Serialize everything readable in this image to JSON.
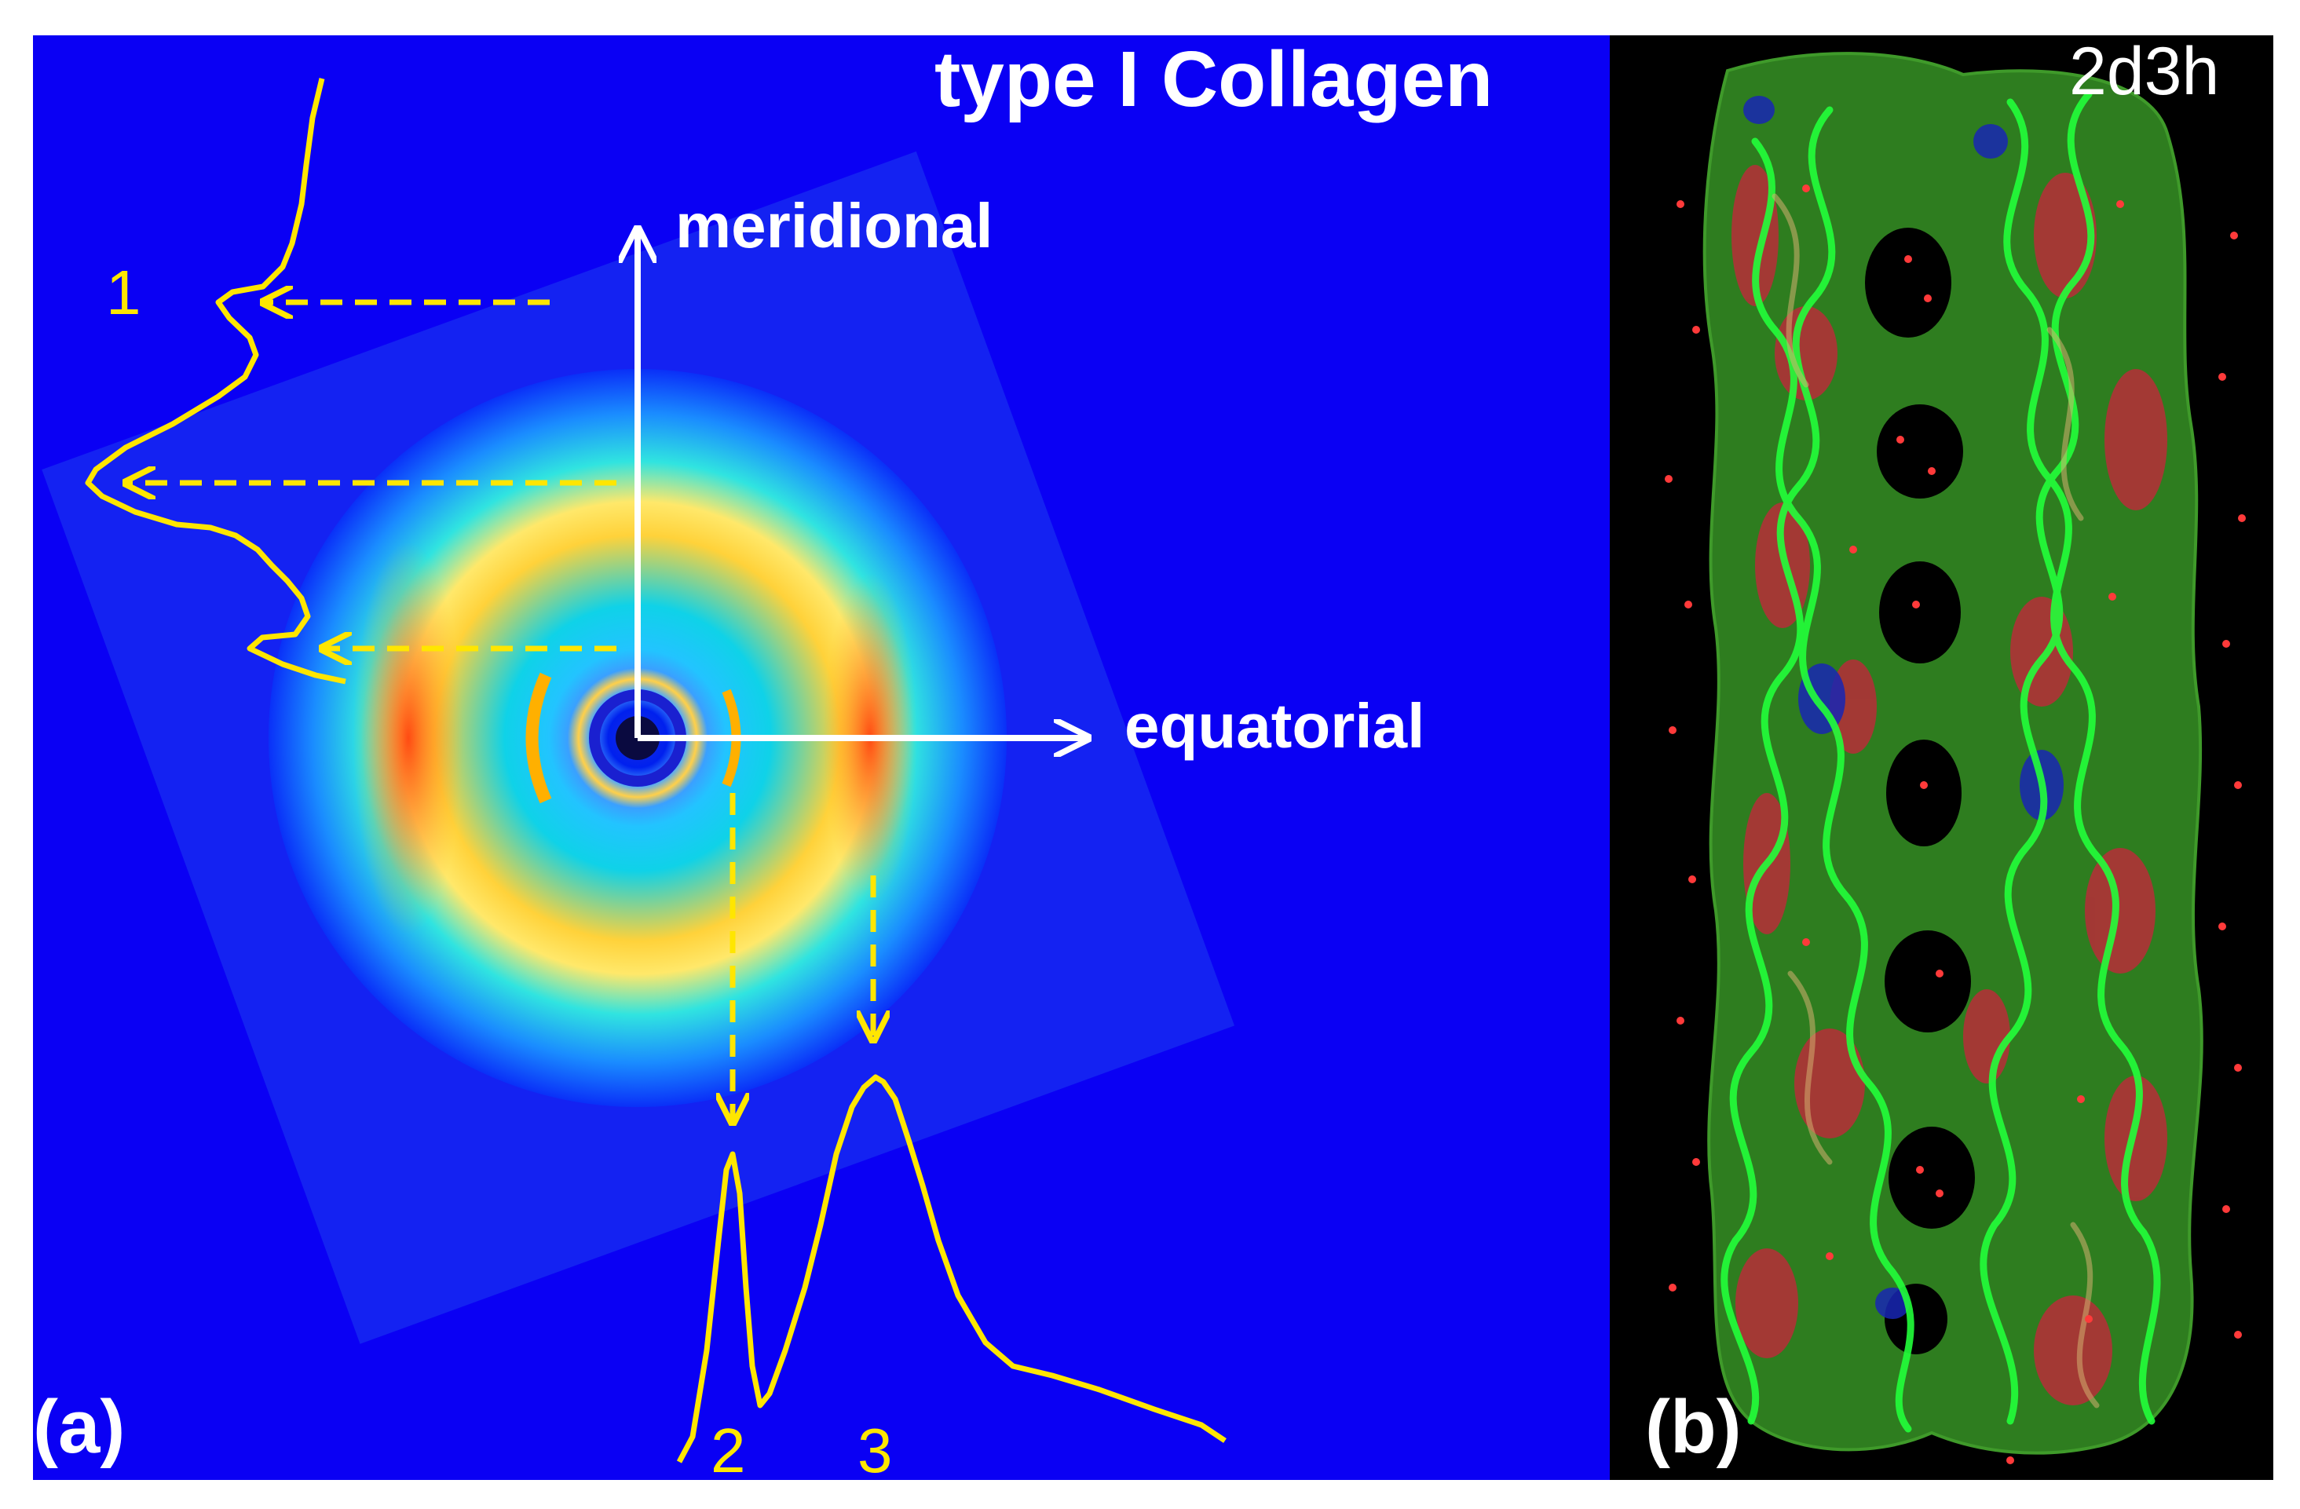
{
  "panel_a": {
    "label": "(a)",
    "title": "type I Collagen",
    "axes": {
      "vertical_label": "meridional",
      "horizontal_label": "equatorial"
    },
    "profile_labels": {
      "meridional_peak": "1",
      "equatorial_peak_left": "2",
      "equatorial_peak_right": "3"
    }
  },
  "panel_b": {
    "label": "(b)",
    "title": "2d3h"
  },
  "colors": {
    "background_a": "#0a00f4",
    "background_b": "#000000",
    "profile": "#ffe600",
    "white": "#ffffff",
    "helix_surface": "#2e7d1f",
    "helix_ribbon": "#22ff3a",
    "oxygen": "#c0283a",
    "nitrogen": "#1826b4",
    "border": "#ffffff"
  }
}
